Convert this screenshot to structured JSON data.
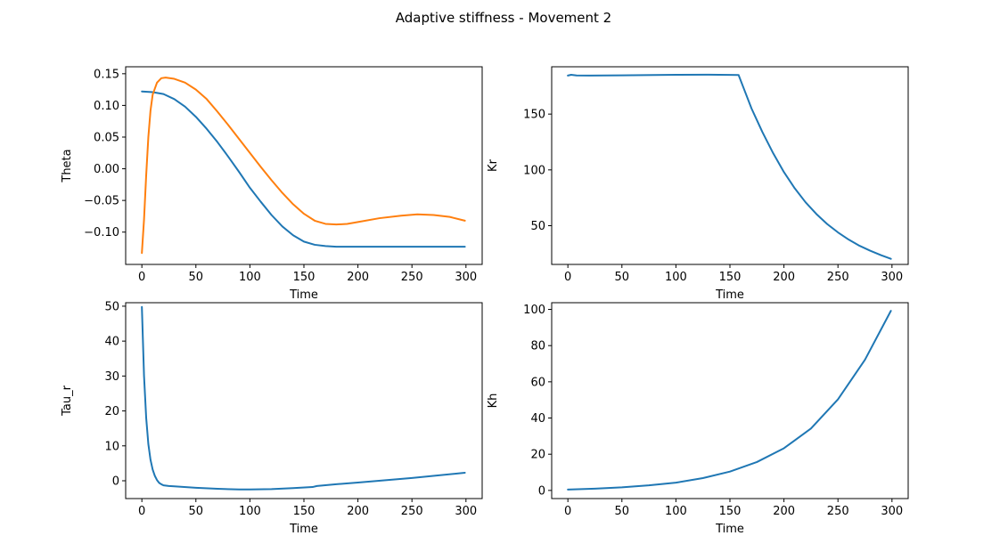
{
  "figure": {
    "suptitle": "Adaptive stiffness - Movement 2"
  },
  "chart_data": [
    {
      "type": "line",
      "panel": "top-left",
      "xlabel": "Time",
      "ylabel": "Theta",
      "xlim": [
        -15,
        315
      ],
      "ylim": [
        -0.151,
        0.161
      ],
      "xticks": [
        0,
        50,
        100,
        150,
        200,
        250,
        300
      ],
      "xtick_labels": [
        "0",
        "50",
        "100",
        "150",
        "200",
        "250",
        "300"
      ],
      "yticks": [
        -0.1,
        -0.05,
        0.0,
        0.05,
        0.1,
        0.15
      ],
      "ytick_labels": [
        "−0.10",
        "−0.05",
        "0.00",
        "0.05",
        "0.10",
        "0.15"
      ],
      "grid": false,
      "series": [
        {
          "color": "#1f77b4",
          "x": [
            0,
            10,
            20,
            30,
            40,
            50,
            60,
            70,
            80,
            90,
            100,
            110,
            120,
            130,
            140,
            150,
            160,
            170,
            180,
            190,
            200,
            220,
            250,
            280,
            299
          ],
          "y": [
            0.122,
            0.121,
            0.118,
            0.11,
            0.098,
            0.082,
            0.063,
            0.042,
            0.019,
            -0.005,
            -0.03,
            -0.052,
            -0.073,
            -0.091,
            -0.105,
            -0.115,
            -0.12,
            -0.122,
            -0.123,
            -0.123,
            -0.123,
            -0.123,
            -0.123,
            -0.123,
            -0.123
          ]
        },
        {
          "color": "#ff7f0e",
          "x": [
            0,
            2,
            4,
            6,
            8,
            10,
            14,
            18,
            22,
            30,
            40,
            50,
            60,
            70,
            80,
            90,
            100,
            110,
            120,
            130,
            140,
            150,
            160,
            170,
            180,
            190,
            200,
            220,
            240,
            255,
            270,
            285,
            299
          ],
          "y": [
            -0.133,
            -0.08,
            -0.01,
            0.05,
            0.092,
            0.117,
            0.136,
            0.143,
            0.144,
            0.142,
            0.136,
            0.125,
            0.11,
            0.09,
            0.069,
            0.047,
            0.025,
            0.003,
            -0.018,
            -0.038,
            -0.056,
            -0.071,
            -0.082,
            -0.087,
            -0.088,
            -0.087,
            -0.084,
            -0.078,
            -0.074,
            -0.072,
            -0.073,
            -0.076,
            -0.082
          ]
        }
      ]
    },
    {
      "type": "line",
      "panel": "top-right",
      "xlabel": "Time",
      "ylabel": "Kr",
      "xlim": [
        -15,
        315
      ],
      "ylim": [
        15.3,
        192.4
      ],
      "xticks": [
        0,
        50,
        100,
        150,
        200,
        250,
        300
      ],
      "xtick_labels": [
        "0",
        "50",
        "100",
        "150",
        "200",
        "250",
        "300"
      ],
      "yticks": [
        50,
        100,
        150
      ],
      "ytick_labels": [
        "50",
        "100",
        "150"
      ],
      "grid": false,
      "series": [
        {
          "color": "#1f77b4",
          "x": [
            0,
            3,
            8,
            20,
            50,
            100,
            130,
            150,
            158,
            162,
            170,
            180,
            190,
            200,
            210,
            220,
            230,
            240,
            250,
            260,
            270,
            280,
            290,
            299
          ],
          "y": [
            184.5,
            185.2,
            184.6,
            184.5,
            184.7,
            185.2,
            185.3,
            185.1,
            185.0,
            175.0,
            155.0,
            134.0,
            115.0,
            98.0,
            83.5,
            71.0,
            60.5,
            51.5,
            44.0,
            37.5,
            32.0,
            27.5,
            23.5,
            20.3
          ]
        }
      ]
    },
    {
      "type": "line",
      "panel": "bottom-left",
      "xlabel": "Time",
      "ylabel": "Tau_r",
      "xlim": [
        -15,
        315
      ],
      "ylim": [
        -5.1,
        51.0
      ],
      "xticks": [
        0,
        50,
        100,
        150,
        200,
        250,
        300
      ],
      "xtick_labels": [
        "0",
        "50",
        "100",
        "150",
        "200",
        "250",
        "300"
      ],
      "yticks": [
        0,
        10,
        20,
        30,
        40,
        50
      ],
      "ytick_labels": [
        "0",
        "10",
        "20",
        "30",
        "40",
        "50"
      ],
      "grid": false,
      "series": [
        {
          "color": "#1f77b4",
          "x": [
            0,
            2,
            4,
            6,
            8,
            10,
            12,
            14,
            16,
            18,
            20,
            25,
            30,
            50,
            70,
            90,
            100,
            120,
            140,
            158,
            162,
            180,
            200,
            250,
            299
          ],
          "y": [
            49.8,
            30.0,
            18.0,
            10.5,
            6.0,
            3.2,
            1.4,
            0.2,
            -0.6,
            -1.0,
            -1.3,
            -1.5,
            -1.6,
            -2.0,
            -2.3,
            -2.5,
            -2.5,
            -2.4,
            -2.1,
            -1.8,
            -1.5,
            -1.0,
            -0.5,
            0.8,
            2.3
          ]
        }
      ]
    },
    {
      "type": "line",
      "panel": "bottom-right",
      "xlabel": "Time",
      "ylabel": "Kh",
      "xlim": [
        -15,
        315
      ],
      "ylim": [
        -4.5,
        103.7
      ],
      "xticks": [
        0,
        50,
        100,
        150,
        200,
        250,
        300
      ],
      "xtick_labels": [
        "0",
        "50",
        "100",
        "150",
        "200",
        "250",
        "300"
      ],
      "yticks": [
        0,
        20,
        40,
        60,
        80,
        100
      ],
      "ytick_labels": [
        "0",
        "20",
        "40",
        "60",
        "80",
        "100"
      ],
      "grid": false,
      "series": [
        {
          "color": "#1f77b4",
          "x": [
            0,
            25,
            50,
            75,
            100,
            125,
            150,
            175,
            200,
            225,
            250,
            275,
            299
          ],
          "y": [
            0.5,
            1.0,
            1.7,
            2.8,
            4.3,
            6.8,
            10.4,
            15.7,
            23.3,
            34.2,
            50.3,
            72.2,
            99.2
          ]
        }
      ]
    }
  ]
}
